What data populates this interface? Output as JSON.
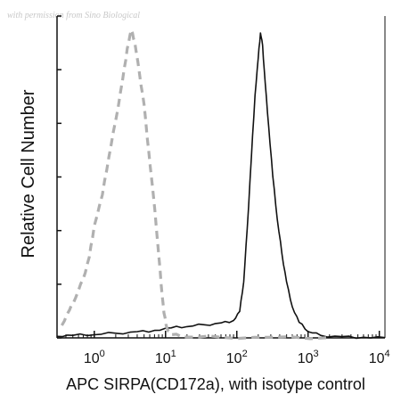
{
  "watermark": "with permission from Sino Biological",
  "chart_data": {
    "type": "line",
    "title": "",
    "xlabel": "APC SIRPA(CD172a), with isotype control",
    "ylabel": "Relative Cell Number",
    "x_scale": "log",
    "xlim": [
      0.3,
      12000
    ],
    "ylim": [
      0,
      100
    ],
    "x_ticks": [
      {
        "value": 1,
        "base": "10",
        "exp": "0"
      },
      {
        "value": 10,
        "base": "10",
        "exp": "1"
      },
      {
        "value": 100,
        "base": "10",
        "exp": "2"
      },
      {
        "value": 1000,
        "base": "10",
        "exp": "3"
      },
      {
        "value": 10000,
        "base": "10",
        "exp": "4"
      }
    ],
    "series": [
      {
        "style": "solid",
        "color": "#111111",
        "points": [
          [
            0.3,
            0.5
          ],
          [
            0.5,
            0.8
          ],
          [
            1,
            1.0
          ],
          [
            2,
            1.5
          ],
          [
            4,
            2.0
          ],
          [
            7,
            2.4
          ],
          [
            12,
            3.2
          ],
          [
            20,
            3.6
          ],
          [
            35,
            4.2
          ],
          [
            60,
            4.8
          ],
          [
            90,
            5.6
          ],
          [
            110,
            8.5
          ],
          [
            125,
            18
          ],
          [
            140,
            35
          ],
          [
            160,
            58
          ],
          [
            180,
            78
          ],
          [
            200,
            90
          ],
          [
            215,
            98
          ],
          [
            230,
            94
          ],
          [
            250,
            82
          ],
          [
            280,
            68
          ],
          [
            320,
            52
          ],
          [
            370,
            38
          ],
          [
            430,
            27
          ],
          [
            500,
            18
          ],
          [
            600,
            10
          ],
          [
            750,
            5
          ],
          [
            1000,
            2
          ],
          [
            1500,
            0.8
          ],
          [
            3000,
            0.4
          ],
          [
            6000,
            0.2
          ],
          [
            12000,
            0.1
          ]
        ]
      },
      {
        "style": "dashed",
        "color": "#b0b0b0",
        "points": [
          [
            0.35,
            4
          ],
          [
            0.45,
            9
          ],
          [
            0.55,
            13
          ],
          [
            0.7,
            19
          ],
          [
            0.85,
            26
          ],
          [
            1.0,
            36
          ],
          [
            1.3,
            46
          ],
          [
            1.6,
            58
          ],
          [
            2.0,
            70
          ],
          [
            2.5,
            83
          ],
          [
            2.9,
            93
          ],
          [
            3.3,
            99
          ],
          [
            3.7,
            95
          ],
          [
            4.3,
            85
          ],
          [
            5.0,
            75
          ],
          [
            5.8,
            60
          ],
          [
            6.8,
            45
          ],
          [
            7.8,
            30
          ],
          [
            8.7,
            17
          ],
          [
            9.5,
            8
          ],
          [
            10.5,
            3
          ],
          [
            12,
            1
          ],
          [
            20,
            0.3
          ],
          [
            60,
            0.2
          ],
          [
            300,
            0.2
          ],
          [
            2000,
            0.1
          ]
        ]
      }
    ]
  }
}
